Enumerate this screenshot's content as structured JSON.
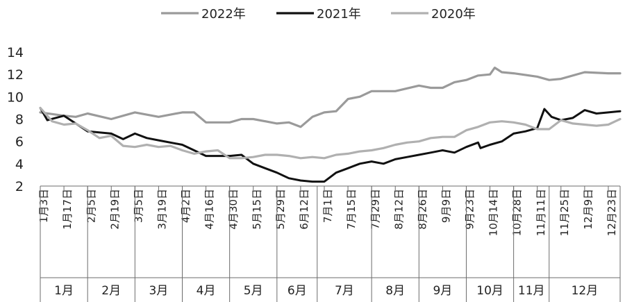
{
  "chart_data": {
    "type": "line",
    "title": "",
    "xlabel": "",
    "ylabel": "",
    "ylim": [
      2,
      14
    ],
    "yticks": [
      2,
      4,
      6,
      8,
      10,
      12,
      14
    ],
    "grid": false,
    "legend_position": "top",
    "x_ticks": [
      "1月3日",
      "1月17日",
      "2月5日",
      "2月19日",
      "3月5日",
      "3月19日",
      "4月2日",
      "4月16日",
      "4月30日",
      "5月15日",
      "5月29日",
      "6月12日",
      "7月1日",
      "7月15日",
      "7月29日",
      "8月12日",
      "8月26日",
      "9月9日",
      "9月23日",
      "10月14日",
      "10月28日",
      "11月11日",
      "11月25日",
      "12月9日",
      "12月23日"
    ],
    "months": [
      "1月",
      "2月",
      "3月",
      "4月",
      "5月",
      "6月",
      "7月",
      "8月",
      "9月",
      "10月",
      "11月",
      "12月"
    ],
    "series": [
      {
        "name": "2022年",
        "color": "#9a9a9a",
        "values": [
          [
            0,
            8.6
          ],
          [
            1,
            8.3
          ],
          [
            1.5,
            8.2
          ],
          [
            2,
            8.5
          ],
          [
            3,
            8.0
          ],
          [
            4,
            8.6
          ],
          [
            5,
            8.2
          ],
          [
            6,
            8.6
          ],
          [
            6.5,
            8.6
          ],
          [
            7,
            7.7
          ],
          [
            8,
            7.7
          ],
          [
            8.5,
            8.0
          ],
          [
            9,
            8.0
          ],
          [
            10,
            7.6
          ],
          [
            10.5,
            7.7
          ],
          [
            11,
            7.3
          ],
          [
            11.5,
            8.2
          ],
          [
            12,
            8.6
          ],
          [
            12.5,
            8.7
          ],
          [
            13,
            9.8
          ],
          [
            13.5,
            10.0
          ],
          [
            14,
            10.5
          ],
          [
            15,
            10.5
          ],
          [
            16,
            11.0
          ],
          [
            16.5,
            10.8
          ],
          [
            17,
            10.8
          ],
          [
            17.5,
            11.3
          ],
          [
            18,
            11.5
          ],
          [
            18.5,
            11.9
          ],
          [
            19,
            12.0
          ],
          [
            19.2,
            12.6
          ],
          [
            19.5,
            12.2
          ],
          [
            20,
            12.1
          ],
          [
            21,
            11.8
          ],
          [
            21.5,
            11.5
          ],
          [
            22,
            11.6
          ],
          [
            23,
            12.2
          ],
          [
            24,
            12.1
          ],
          [
            24.5,
            12.1
          ]
        ]
      },
      {
        "name": "2021年",
        "color": "#111111",
        "values": [
          [
            0,
            9.0
          ],
          [
            0.3,
            7.9
          ],
          [
            1,
            8.3
          ],
          [
            1.5,
            7.6
          ],
          [
            2,
            6.9
          ],
          [
            3,
            6.7
          ],
          [
            3.5,
            6.2
          ],
          [
            4,
            6.7
          ],
          [
            4.5,
            6.3
          ],
          [
            5,
            6.1
          ],
          [
            6,
            5.7
          ],
          [
            6.5,
            5.2
          ],
          [
            7,
            4.7
          ],
          [
            8,
            4.7
          ],
          [
            8.5,
            4.8
          ],
          [
            9,
            4.0
          ],
          [
            9.5,
            3.6
          ],
          [
            10,
            3.2
          ],
          [
            10.5,
            2.7
          ],
          [
            11,
            2.5
          ],
          [
            11.5,
            2.4
          ],
          [
            12,
            2.4
          ],
          [
            12.5,
            3.2
          ],
          [
            13,
            3.6
          ],
          [
            13.5,
            4.0
          ],
          [
            14,
            4.2
          ],
          [
            14.5,
            4.0
          ],
          [
            15,
            4.4
          ],
          [
            15.5,
            4.6
          ],
          [
            16,
            4.8
          ],
          [
            16.5,
            5.0
          ],
          [
            17,
            5.2
          ],
          [
            17.5,
            5.0
          ],
          [
            18,
            5.5
          ],
          [
            18.5,
            5.9
          ],
          [
            18.6,
            5.4
          ],
          [
            19,
            5.7
          ],
          [
            19.5,
            6.0
          ],
          [
            20,
            6.7
          ],
          [
            20.5,
            6.9
          ],
          [
            21,
            7.2
          ],
          [
            21.3,
            8.9
          ],
          [
            21.6,
            8.2
          ],
          [
            22,
            7.9
          ],
          [
            22.5,
            8.1
          ],
          [
            23,
            8.8
          ],
          [
            23.5,
            8.5
          ],
          [
            24,
            8.6
          ],
          [
            24.5,
            8.7
          ]
        ]
      },
      {
        "name": "2020年",
        "color": "#b0b0b0",
        "values": [
          [
            0,
            9.0
          ],
          [
            0.5,
            7.8
          ],
          [
            1,
            7.5
          ],
          [
            1.5,
            7.6
          ],
          [
            2,
            7.0
          ],
          [
            2.5,
            6.3
          ],
          [
            3,
            6.5
          ],
          [
            3.5,
            5.6
          ],
          [
            4,
            5.5
          ],
          [
            4.5,
            5.7
          ],
          [
            5,
            5.5
          ],
          [
            5.5,
            5.6
          ],
          [
            6,
            5.2
          ],
          [
            6.5,
            4.9
          ],
          [
            7,
            5.1
          ],
          [
            7.5,
            5.2
          ],
          [
            8,
            4.5
          ],
          [
            8.5,
            4.5
          ],
          [
            9,
            4.6
          ],
          [
            9.5,
            4.8
          ],
          [
            10,
            4.8
          ],
          [
            10.5,
            4.7
          ],
          [
            11,
            4.5
          ],
          [
            11.5,
            4.6
          ],
          [
            12,
            4.5
          ],
          [
            12.5,
            4.8
          ],
          [
            13,
            4.9
          ],
          [
            13.5,
            5.1
          ],
          [
            14,
            5.2
          ],
          [
            14.5,
            5.4
          ],
          [
            15,
            5.7
          ],
          [
            15.5,
            5.9
          ],
          [
            16,
            6.0
          ],
          [
            16.5,
            6.3
          ],
          [
            17,
            6.4
          ],
          [
            17.5,
            6.4
          ],
          [
            18,
            7.0
          ],
          [
            18.5,
            7.3
          ],
          [
            19,
            7.7
          ],
          [
            19.5,
            7.8
          ],
          [
            20,
            7.7
          ],
          [
            20.5,
            7.5
          ],
          [
            21,
            7.1
          ],
          [
            21.5,
            7.1
          ],
          [
            22,
            7.9
          ],
          [
            22.5,
            7.6
          ],
          [
            23,
            7.5
          ],
          [
            23.5,
            7.4
          ],
          [
            24,
            7.5
          ],
          [
            24.5,
            8.0
          ]
        ]
      }
    ]
  }
}
